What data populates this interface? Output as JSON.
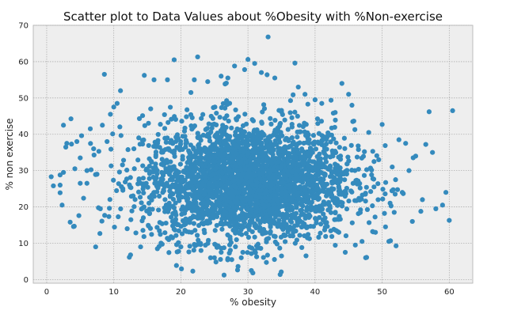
{
  "chart_data": {
    "type": "scatter",
    "title": "Scatter plot to Data Values about %Obesity with %Non-exercise",
    "xlabel": "% obesity",
    "ylabel": "% non exercise",
    "xlim": [
      -2,
      63.5
    ],
    "ylim": [
      -1,
      70
    ],
    "xticks": [
      "0",
      "10",
      "20",
      "30",
      "40",
      "50",
      "60"
    ],
    "yticks": [
      "0",
      "10",
      "20",
      "30",
      "40",
      "50",
      "60",
      "70"
    ],
    "grid": true,
    "color": "#348abd",
    "background": "#eeeeee",
    "series": [
      {
        "values_description": "dense elliptical cloud centered near (30, 27)",
        "points": [
          [
            1,
            25.8
          ],
          [
            2,
            23.9
          ],
          [
            2,
            26
          ],
          [
            2,
            28.8
          ],
          [
            2.3,
            20.5
          ],
          [
            2.5,
            29.5
          ],
          [
            2.5,
            42.5
          ],
          [
            3,
            37.5
          ],
          [
            3.5,
            15.8
          ],
          [
            3.7,
            37.3
          ],
          [
            4,
            14.6
          ],
          [
            4.2,
            30.5
          ],
          [
            4.5,
            38
          ],
          [
            4.8,
            17.6
          ],
          [
            5,
            26.5
          ],
          [
            5,
            33.5
          ],
          [
            5.2,
            39.6
          ],
          [
            5.5,
            22.4
          ],
          [
            6,
            26.5
          ],
          [
            6,
            30
          ],
          [
            6.5,
            41.5
          ],
          [
            7,
            36
          ],
          [
            7.3,
            9
          ],
          [
            7.5,
            29
          ],
          [
            8,
            19.5
          ],
          [
            8.3,
            42.5
          ],
          [
            8.6,
            56.5
          ],
          [
            9,
            38
          ],
          [
            9.5,
            45.5
          ],
          [
            10,
            47.5
          ],
          [
            10.5,
            48.5
          ],
          [
            11,
            52
          ],
          [
            12,
            14
          ],
          [
            12.5,
            6.8
          ],
          [
            13,
            36
          ],
          [
            14,
            9
          ],
          [
            15.5,
            47
          ],
          [
            16,
            55
          ],
          [
            16.5,
            8.5
          ],
          [
            18,
            55
          ],
          [
            19,
            60.5
          ],
          [
            20,
            9
          ],
          [
            21.5,
            51.5
          ],
          [
            22,
            55
          ],
          [
            22.5,
            61.3
          ],
          [
            23,
            8
          ],
          [
            24,
            54.5
          ],
          [
            25,
            6
          ],
          [
            26,
            56
          ],
          [
            27,
            55.5
          ],
          [
            27,
            5.8
          ],
          [
            28,
            58.8
          ],
          [
            29,
            6
          ],
          [
            29.5,
            57.8
          ],
          [
            30,
            60.6
          ],
          [
            30.5,
            2.5
          ],
          [
            31,
            59.5
          ],
          [
            32,
            57
          ],
          [
            33,
            66.8
          ],
          [
            34,
            55.5
          ],
          [
            35,
            6.5
          ],
          [
            37,
            59.6
          ],
          [
            37.5,
            53
          ],
          [
            38.5,
            51
          ],
          [
            40,
            49.5
          ],
          [
            41,
            48.5
          ],
          [
            43,
            46
          ],
          [
            44,
            54
          ],
          [
            44.5,
            7.5
          ],
          [
            45,
            51
          ],
          [
            45.5,
            48
          ],
          [
            46,
            9.5
          ],
          [
            47,
            10.5
          ],
          [
            48,
            40.5
          ],
          [
            49,
            13
          ],
          [
            50,
            42.7
          ],
          [
            50.5,
            14.5
          ],
          [
            51,
            10.5
          ],
          [
            51.5,
            31
          ],
          [
            52,
            27.5
          ],
          [
            52.5,
            38.5
          ],
          [
            53,
            24
          ],
          [
            53.5,
            37.5
          ],
          [
            54,
            30
          ],
          [
            54.5,
            16
          ],
          [
            55,
            34
          ],
          [
            56,
            22
          ],
          [
            56.5,
            37.2
          ],
          [
            57,
            46.2
          ],
          [
            57.5,
            35
          ],
          [
            58,
            19.5
          ],
          [
            59,
            20.5
          ],
          [
            59.5,
            24
          ],
          [
            60,
            16.3
          ],
          [
            60.5,
            46.5
          ]
        ]
      }
    ]
  }
}
